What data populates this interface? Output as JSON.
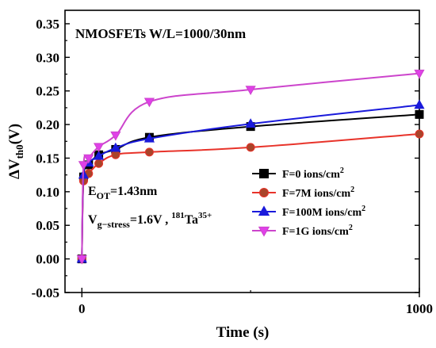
{
  "chart_data": {
    "type": "line",
    "title": "NMOSFETs W/L=1000/30nm",
    "xlabel": "Time (s)",
    "ylabel": {
      "main": "ΔV",
      "sub": "th0",
      "unit": "(V)"
    },
    "xlim": [
      -50,
      1000
    ],
    "ylim": [
      -0.05,
      0.37
    ],
    "x_ticks": [
      0,
      1000
    ],
    "y_ticks": [
      -0.05,
      0.0,
      0.05,
      0.1,
      0.15,
      0.2,
      0.25,
      0.3,
      0.35
    ],
    "y_tick_labels": [
      "-0.05",
      "0.00",
      "0.05",
      "0.10",
      "0.15",
      "0.20",
      "0.25",
      "0.30",
      "0.35"
    ],
    "grid": false,
    "legend_position": "center-right",
    "annotations": {
      "eot": {
        "prefix": "E",
        "sub": "OT",
        "suffix": "=1.43nm"
      },
      "stress": {
        "prefix": "V",
        "sub": "g−stress",
        "mid": "=1.6V , ",
        "sup1": "181",
        "ion": "Ta",
        "sup2": "35+"
      }
    },
    "series": [
      {
        "name": "F=0 ions/cm",
        "name_sup": "2",
        "color": "#000000",
        "marker": "square",
        "x": [
          0,
          5,
          20,
          50,
          100,
          200,
          500,
          1000
        ],
        "y": [
          0.0,
          0.122,
          0.14,
          0.155,
          0.163,
          0.181,
          0.197,
          0.215
        ]
      },
      {
        "name": "F=7M ions/cm",
        "name_sup": "2",
        "color": "#e8332a",
        "marker": "circle",
        "marker_fill": "#a9442a",
        "x": [
          0,
          5,
          20,
          50,
          100,
          200,
          500,
          1000
        ],
        "y": [
          0.0,
          0.116,
          0.127,
          0.142,
          0.155,
          0.159,
          0.166,
          0.186
        ]
      },
      {
        "name": "F=100M ions/cm",
        "name_sup": "2",
        "color": "#1a1adb",
        "marker": "triangle-up",
        "x": [
          0,
          5,
          20,
          50,
          100,
          200,
          500,
          1000
        ],
        "y": [
          0.0,
          0.125,
          0.143,
          0.153,
          0.165,
          0.179,
          0.201,
          0.229
        ]
      },
      {
        "name": "F=1G ions/cm",
        "name_sup": "2",
        "color": "#cc44cc",
        "marker_fill": "#e040e8",
        "marker": "triangle-down",
        "x": [
          0,
          5,
          20,
          50,
          100,
          200,
          500,
          1000
        ],
        "y": [
          0.0,
          0.14,
          0.15,
          0.167,
          0.184,
          0.234,
          0.252,
          0.276
        ]
      }
    ]
  }
}
